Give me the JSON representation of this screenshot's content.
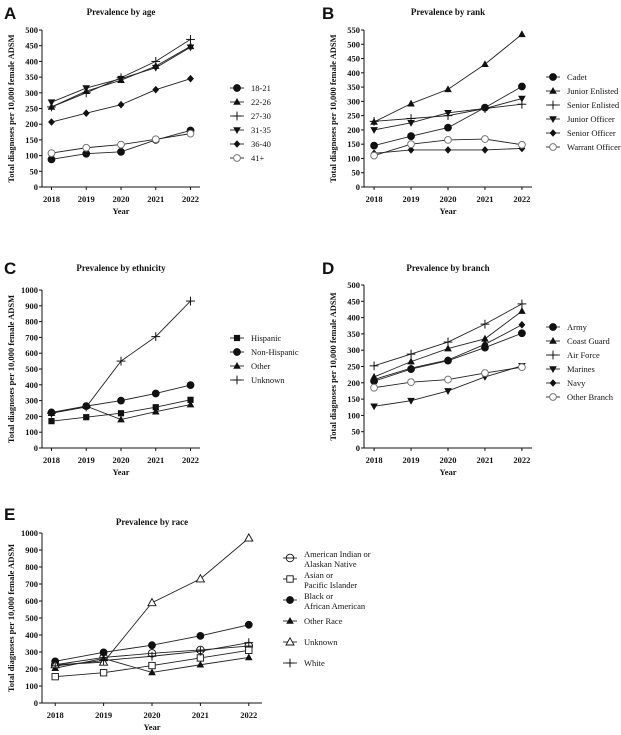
{
  "chart_data": [
    {
      "panel": "A",
      "type": "line",
      "title": "Prevalence by age",
      "xlabel": "Year",
      "ylabel": "Total diagnoses per 10,000 female ADSM",
      "categories": [
        "2018",
        "2019",
        "2020",
        "2021",
        "2022"
      ],
      "ylim": [
        0,
        500
      ],
      "yticks": [
        0,
        50,
        100,
        150,
        200,
        250,
        300,
        350,
        400,
        450,
        500
      ],
      "legend_position": "right",
      "series": [
        {
          "name": "18-21",
          "marker": "circle",
          "values": [
            88,
            106,
            112,
            150,
            180
          ]
        },
        {
          "name": "22-26",
          "marker": "triangle",
          "values": [
            255,
            305,
            340,
            385,
            448
          ]
        },
        {
          "name": "27-30",
          "marker": "plus",
          "values": [
            255,
            300,
            348,
            400,
            470
          ]
        },
        {
          "name": "31-35",
          "marker": "triangle-down",
          "values": [
            270,
            315,
            345,
            380,
            445
          ]
        },
        {
          "name": "36-40",
          "marker": "diamond",
          "values": [
            207,
            235,
            262,
            310,
            345
          ]
        },
        {
          "name": "41+",
          "marker": "open-circle",
          "values": [
            108,
            125,
            135,
            152,
            170
          ]
        }
      ]
    },
    {
      "panel": "B",
      "type": "line",
      "title": "Prevalence by rank",
      "xlabel": "Year",
      "ylabel": "Total diagnoses per 10,000 female ADSM",
      "categories": [
        "2018",
        "2019",
        "2020",
        "2021",
        "2022"
      ],
      "ylim": [
        0,
        550
      ],
      "yticks": [
        0,
        50,
        100,
        150,
        200,
        250,
        300,
        350,
        400,
        450,
        500,
        550
      ],
      "legend_position": "right",
      "series": [
        {
          "name": "Cadet",
          "marker": "circle",
          "values": [
            145,
            178,
            208,
            278,
            352
          ]
        },
        {
          "name": "Junior Enlisted",
          "marker": "triangle",
          "values": [
            228,
            292,
            342,
            430,
            535
          ]
        },
        {
          "name": "Senior Enlisted",
          "marker": "plus",
          "values": [
            230,
            240,
            250,
            275,
            290
          ]
        },
        {
          "name": "Junior Officer",
          "marker": "triangle-down",
          "values": [
            200,
            225,
            260,
            275,
            310
          ]
        },
        {
          "name": "Senior Officer",
          "marker": "diamond",
          "values": [
            118,
            130,
            130,
            130,
            135
          ]
        },
        {
          "name": "Warrant Officer",
          "marker": "open-circle",
          "values": [
            110,
            150,
            165,
            168,
            148
          ]
        }
      ]
    },
    {
      "panel": "C",
      "type": "line",
      "title": "Prevalence by ethnicity",
      "xlabel": "Year",
      "ylabel": "Total diagnoses per 10,000 female ADSM",
      "categories": [
        "2018",
        "2019",
        "2020",
        "2021",
        "2022"
      ],
      "ylim": [
        0,
        1000
      ],
      "yticks": [
        0,
        100,
        200,
        300,
        400,
        500,
        600,
        700,
        800,
        900,
        1000
      ],
      "legend_position": "right",
      "series": [
        {
          "name": "Hispanic",
          "marker": "square",
          "values": [
            170,
            195,
            220,
            258,
            305
          ]
        },
        {
          "name": "Non-Hispanic",
          "marker": "circle",
          "values": [
            225,
            265,
            300,
            345,
            398
          ]
        },
        {
          "name": "Other",
          "marker": "triangle",
          "values": [
            220,
            265,
            180,
            230,
            275
          ]
        },
        {
          "name": "Unknown",
          "marker": "plus",
          "values": [
            220,
            260,
            550,
            705,
            930
          ]
        }
      ]
    },
    {
      "panel": "D",
      "type": "line",
      "title": "Prevalence by branch",
      "xlabel": "Year",
      "ylabel": "Total diagnoses per 10,000 female ADSM",
      "categories": [
        "2018",
        "2019",
        "2020",
        "2021",
        "2022"
      ],
      "ylim": [
        0,
        500
      ],
      "yticks": [
        0,
        50,
        100,
        150,
        200,
        250,
        300,
        350,
        400,
        450,
        500
      ],
      "legend_position": "right",
      "series": [
        {
          "name": "Army",
          "marker": "circle",
          "values": [
            205,
            242,
            268,
            308,
            352
          ]
        },
        {
          "name": "Coast Guard",
          "marker": "triangle",
          "values": [
            218,
            265,
            305,
            335,
            420
          ]
        },
        {
          "name": "Air Force",
          "marker": "plus",
          "values": [
            252,
            288,
            325,
            380,
            442
          ]
        },
        {
          "name": "Marines",
          "marker": "triangle-down",
          "values": [
            128,
            145,
            175,
            218,
            252
          ]
        },
        {
          "name": "Navy",
          "marker": "diamond",
          "values": [
            210,
            245,
            270,
            318,
            378
          ]
        },
        {
          "name": "Other Branch",
          "marker": "open-circle",
          "values": [
            185,
            202,
            210,
            230,
            248
          ]
        }
      ]
    },
    {
      "panel": "E",
      "type": "line",
      "title": "Prevalence by race",
      "xlabel": "Year",
      "ylabel": "Total diagnoses per 10,000 female ADSM",
      "categories": [
        "2018",
        "2019",
        "2020",
        "2021",
        "2022"
      ],
      "ylim": [
        0,
        1000
      ],
      "yticks": [
        0,
        100,
        200,
        300,
        400,
        500,
        600,
        700,
        800,
        900,
        1000
      ],
      "legend_position": "right",
      "series": [
        {
          "name": "American Indian or Alaskan Native",
          "marker": "open-circle-line",
          "values": [
            225,
            268,
            292,
            312,
            335
          ]
        },
        {
          "name": "Asian or Pacific Islander",
          "marker": "open-square",
          "values": [
            155,
            178,
            220,
            265,
            310
          ]
        },
        {
          "name": "Black or African American",
          "marker": "circle",
          "values": [
            245,
            298,
            340,
            395,
            460
          ]
        },
        {
          "name": "Other Race",
          "marker": "triangle",
          "values": [
            205,
            262,
            180,
            225,
            268
          ]
        },
        {
          "name": "Unknown",
          "marker": "open-triangle",
          "values": [
            225,
            240,
            590,
            730,
            970
          ]
        },
        {
          "name": "White",
          "marker": "plus",
          "values": [
            218,
            250,
            275,
            305,
            355
          ]
        }
      ]
    }
  ],
  "layout_labels": {
    "panel_letters": [
      "A",
      "B",
      "C",
      "D",
      "E"
    ],
    "legend_lines": {
      "American Indian or Alaskan Native": [
        "American Indian or",
        "Alaskan Native"
      ],
      "Asian or Pacific Islander": [
        "Asian or",
        "Pacific Islander"
      ],
      "Black or African American": [
        "Black or",
        "African American"
      ]
    }
  }
}
